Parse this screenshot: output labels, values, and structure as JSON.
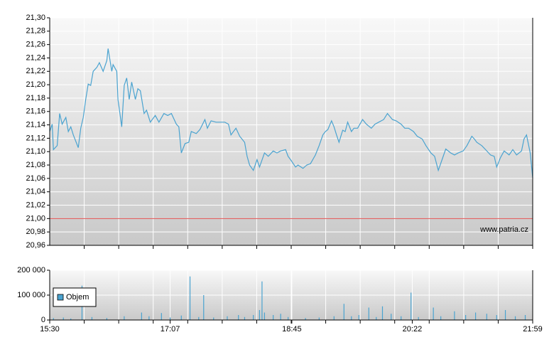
{
  "chart_data": [
    {
      "type": "line",
      "color": "#4aa3d0",
      "reference_line": 21.0,
      "reference_color": "#e05050",
      "source": "www.patria.cz",
      "xlim": [
        930,
        1319
      ],
      "ylim": [
        20.96,
        21.3
      ],
      "yticks": [
        {
          "value": 20.96,
          "label": "20,96"
        },
        {
          "value": 20.98,
          "label": "20,98"
        },
        {
          "value": 21.0,
          "label": "21,00"
        },
        {
          "value": 21.02,
          "label": "21,02"
        },
        {
          "value": 21.04,
          "label": "21,04"
        },
        {
          "value": 21.06,
          "label": "21,06"
        },
        {
          "value": 21.08,
          "label": "21,08"
        },
        {
          "value": 21.1,
          "label": "21,10"
        },
        {
          "value": 21.12,
          "label": "21,12"
        },
        {
          "value": 21.14,
          "label": "21,14"
        },
        {
          "value": 21.16,
          "label": "21,16"
        },
        {
          "value": 21.18,
          "label": "21,18"
        },
        {
          "value": 21.2,
          "label": "21,20"
        },
        {
          "value": 21.22,
          "label": "21,22"
        },
        {
          "value": 21.24,
          "label": "21,24"
        },
        {
          "value": 21.26,
          "label": "21,26"
        },
        {
          "value": 21.28,
          "label": "21,28"
        },
        {
          "value": 21.3,
          "label": "21,30"
        }
      ],
      "x": [
        930,
        932,
        933,
        936,
        938,
        940,
        943,
        945,
        947,
        949,
        953,
        955,
        957,
        959,
        961,
        963,
        965,
        968,
        970,
        973,
        976,
        977,
        980,
        981,
        984,
        985,
        988,
        990,
        992,
        994,
        996,
        999,
        1001,
        1003,
        1006,
        1008,
        1011,
        1015,
        1018,
        1022,
        1025,
        1028,
        1032,
        1034,
        1036,
        1039,
        1042,
        1044,
        1048,
        1051,
        1055,
        1057,
        1060,
        1064,
        1067,
        1071,
        1074,
        1076,
        1080,
        1083,
        1087,
        1089,
        1091,
        1094,
        1097,
        1099,
        1103,
        1106,
        1110,
        1113,
        1116,
        1120,
        1122,
        1124,
        1128,
        1130,
        1134,
        1137,
        1140,
        1144,
        1147,
        1150,
        1152,
        1154,
        1157,
        1159,
        1161,
        1163,
        1166,
        1168,
        1170,
        1173,
        1175,
        1178,
        1182,
        1185,
        1189,
        1192,
        1195,
        1199,
        1202,
        1206,
        1209,
        1213,
        1216,
        1219,
        1223,
        1226,
        1230,
        1233,
        1237,
        1240,
        1243,
        1246,
        1249,
        1253,
        1256,
        1259,
        1263,
        1266,
        1270,
        1272,
        1274,
        1278,
        1281,
        1285,
        1288,
        1290,
        1293,
        1296,
        1300,
        1303,
        1306,
        1310,
        1312,
        1314,
        1317,
        1319
      ],
      "values": [
        21.13,
        21.141,
        21.103,
        21.109,
        21.157,
        21.141,
        21.151,
        21.13,
        21.137,
        21.125,
        21.106,
        21.135,
        21.151,
        21.178,
        21.201,
        21.199,
        21.22,
        21.226,
        21.233,
        21.22,
        21.236,
        21.254,
        21.22,
        21.23,
        21.22,
        21.178,
        21.137,
        21.199,
        21.21,
        21.178,
        21.204,
        21.178,
        21.194,
        21.191,
        21.157,
        21.162,
        21.144,
        21.154,
        21.144,
        21.157,
        21.154,
        21.157,
        21.141,
        21.137,
        21.098,
        21.112,
        21.114,
        21.13,
        21.127,
        21.133,
        21.148,
        21.135,
        21.146,
        21.144,
        21.144,
        21.144,
        21.141,
        21.125,
        21.135,
        21.123,
        21.114,
        21.093,
        21.08,
        21.072,
        21.088,
        21.077,
        21.098,
        21.093,
        21.101,
        21.098,
        21.101,
        21.103,
        21.093,
        21.088,
        21.077,
        21.08,
        21.075,
        21.08,
        21.082,
        21.095,
        21.109,
        21.125,
        21.13,
        21.133,
        21.146,
        21.137,
        21.125,
        21.114,
        21.132,
        21.13,
        21.144,
        21.13,
        21.135,
        21.135,
        21.148,
        21.141,
        21.135,
        21.141,
        21.144,
        21.148,
        21.157,
        21.148,
        21.146,
        21.141,
        21.135,
        21.135,
        21.13,
        21.123,
        21.119,
        21.109,
        21.098,
        21.093,
        21.072,
        21.088,
        21.104,
        21.098,
        21.095,
        21.098,
        21.101,
        21.109,
        21.123,
        21.119,
        21.114,
        21.109,
        21.103,
        21.095,
        21.093,
        21.077,
        21.091,
        21.101,
        21.095,
        21.103,
        21.095,
        21.101,
        21.119,
        21.125,
        21.098,
        21.061
      ]
    },
    {
      "type": "bar",
      "xlim": [
        930,
        1319
      ],
      "xticks": [
        {
          "value": 930,
          "label": "15:30"
        },
        {
          "value": 1027,
          "label": "17:07"
        },
        {
          "value": 1125,
          "label": "18:45"
        },
        {
          "value": 1222,
          "label": "20:22"
        },
        {
          "value": 1319,
          "label": "21:59"
        }
      ],
      "ylim": [
        0,
        200000
      ],
      "yticks": [
        0,
        {
          "value": 100000,
          "label": "100 000"
        },
        {
          "value": 200000,
          "label": "200 000"
        }
      ],
      "series": [
        {
          "name": "Objem",
          "color": "#4aa3d0",
          "x": [
            933,
            941,
            947,
            956,
            964,
            976,
            990,
            1004,
            1010,
            1020,
            1027,
            1036,
            1043,
            1050,
            1054,
            1062,
            1073,
            1082,
            1087,
            1094,
            1099,
            1101,
            1103,
            1110,
            1116,
            1122,
            1136,
            1147,
            1159,
            1167,
            1173,
            1179,
            1187,
            1193,
            1198,
            1205,
            1213,
            1221,
            1227,
            1239,
            1245,
            1256,
            1265,
            1273,
            1282,
            1290,
            1297,
            1305,
            1313
          ],
          "values": [
            8000,
            10000,
            6000,
            138000,
            12000,
            8000,
            15000,
            30000,
            15000,
            28000,
            10000,
            18000,
            175000,
            12000,
            100000,
            10000,
            15000,
            20000,
            12000,
            20000,
            40000,
            155000,
            30000,
            20000,
            25000,
            12000,
            8000,
            10000,
            15000,
            65000,
            15000,
            20000,
            50000,
            12000,
            55000,
            25000,
            15000,
            110000,
            12000,
            50000,
            15000,
            35000,
            20000,
            30000,
            25000,
            20000,
            40000,
            15000,
            20000
          ]
        }
      ]
    }
  ]
}
